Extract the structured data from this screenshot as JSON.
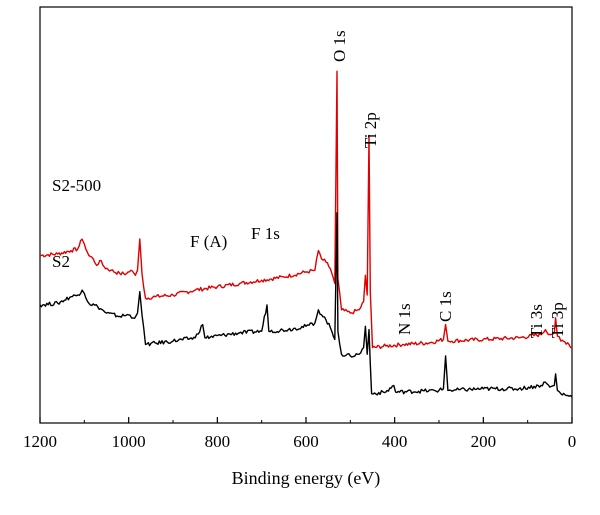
{
  "chart_data": {
    "type": "line",
    "title": "",
    "xlabel": "Binding energy (eV)",
    "ylabel": "",
    "xlim": [
      1200,
      0
    ],
    "x_reversed": true,
    "x_ticks": [
      1200,
      1000,
      800,
      600,
      400,
      200,
      0
    ],
    "grid": false,
    "legend": "none",
    "y_ticks_shown": false,
    "series": [
      {
        "name": "S2-500",
        "color": "#e00000",
        "values": [
          [
            1200,
            43.0
          ],
          [
            1160,
            43.5
          ],
          [
            1130,
            44.5
          ],
          [
            1115,
            45.0
          ],
          [
            1105,
            48.0
          ],
          [
            1100,
            46.5
          ],
          [
            1090,
            43.0
          ],
          [
            1080,
            42.0
          ],
          [
            1072,
            40.0
          ],
          [
            1065,
            41.5
          ],
          [
            1055,
            39.5
          ],
          [
            1040,
            38.5
          ],
          [
            1020,
            37.5
          ],
          [
            1005,
            37.5
          ],
          [
            995,
            38.5
          ],
          [
            985,
            37.0
          ],
          [
            980,
            38.5
          ],
          [
            975,
            48.0
          ],
          [
            970,
            37.5
          ],
          [
            962,
            30.0
          ],
          [
            940,
            30.5
          ],
          [
            900,
            31.0
          ],
          [
            850,
            32.5
          ],
          [
            800,
            33.5
          ],
          [
            750,
            34.5
          ],
          [
            700,
            35.5
          ],
          [
            650,
            36.5
          ],
          [
            600,
            38.0
          ],
          [
            580,
            38.5
          ],
          [
            572,
            44.5
          ],
          [
            565,
            42.0
          ],
          [
            555,
            41.0
          ],
          [
            545,
            39.0
          ],
          [
            535,
            34.5
          ],
          [
            530,
            99.0
          ],
          [
            528,
            36.0
          ],
          [
            520,
            26.5
          ],
          [
            500,
            25.5
          ],
          [
            480,
            26.5
          ],
          [
            470,
            29.0
          ],
          [
            466,
            37.0
          ],
          [
            462,
            31.0
          ],
          [
            458,
            79.5
          ],
          [
            455,
            32.0
          ],
          [
            450,
            15.0
          ],
          [
            420,
            15.5
          ],
          [
            380,
            16.0
          ],
          [
            320,
            16.5
          ],
          [
            290,
            17.5
          ],
          [
            285,
            22.0
          ],
          [
            280,
            17.0
          ],
          [
            200,
            17.5
          ],
          [
            120,
            18.0
          ],
          [
            70,
            19.0
          ],
          [
            60,
            20.5
          ],
          [
            50,
            19.0
          ],
          [
            40,
            19.5
          ],
          [
            37,
            24.0
          ],
          [
            33,
            18.5
          ],
          [
            25,
            17.0
          ],
          [
            10,
            16.5
          ],
          [
            0,
            15.0
          ]
        ]
      },
      {
        "name": "S2",
        "color": "#000000",
        "values": [
          [
            1200,
            28.0
          ],
          [
            1160,
            28.5
          ],
          [
            1130,
            30.5
          ],
          [
            1115,
            31.0
          ],
          [
            1105,
            32.5
          ],
          [
            1100,
            31.5
          ],
          [
            1090,
            28.5
          ],
          [
            1070,
            27.5
          ],
          [
            1050,
            25.5
          ],
          [
            1020,
            24.5
          ],
          [
            1000,
            25.0
          ],
          [
            990,
            24.0
          ],
          [
            980,
            25.5
          ],
          [
            975,
            32.0
          ],
          [
            970,
            25.0
          ],
          [
            962,
            16.0
          ],
          [
            900,
            17.0
          ],
          [
            850,
            18.0
          ],
          [
            833,
            22.0
          ],
          [
            828,
            18.0
          ],
          [
            750,
            19.5
          ],
          [
            700,
            20.0
          ],
          [
            688,
            28.0
          ],
          [
            684,
            20.0
          ],
          [
            640,
            20.5
          ],
          [
            600,
            21.5
          ],
          [
            580,
            22.5
          ],
          [
            572,
            26.5
          ],
          [
            565,
            25.0
          ],
          [
            555,
            23.5
          ],
          [
            545,
            21.0
          ],
          [
            535,
            17.5
          ],
          [
            530,
            56.0
          ],
          [
            528,
            20.0
          ],
          [
            520,
            13.0
          ],
          [
            500,
            12.5
          ],
          [
            480,
            13.0
          ],
          [
            470,
            15.0
          ],
          [
            466,
            21.5
          ],
          [
            462,
            13.0
          ],
          [
            458,
            20.5
          ],
          [
            455,
            10.0
          ],
          [
            452,
            1.0
          ],
          [
            420,
            1.5
          ],
          [
            402,
            3.5
          ],
          [
            398,
            1.5
          ],
          [
            300,
            2.0
          ],
          [
            290,
            2.5
          ],
          [
            285,
            12.5
          ],
          [
            280,
            2.0
          ],
          [
            200,
            2.5
          ],
          [
            120,
            2.5
          ],
          [
            70,
            3.5
          ],
          [
            60,
            4.5
          ],
          [
            50,
            3.0
          ],
          [
            40,
            3.5
          ],
          [
            37,
            7.0
          ],
          [
            33,
            2.0
          ],
          [
            25,
            1.0
          ],
          [
            10,
            0.5
          ],
          [
            0,
            0.0
          ]
        ]
      }
    ],
    "series_labels": [
      "S2-500",
      "S2"
    ],
    "peak_labels": [
      {
        "text": "O 1s",
        "x": 530,
        "rotated": true
      },
      {
        "text": "Ti 2p",
        "x": 458,
        "rotated": true
      },
      {
        "text": "F (A)",
        "x": 795,
        "rotated": false
      },
      {
        "text": "F 1s",
        "x": 688,
        "rotated": false
      },
      {
        "text": "N 1s",
        "x": 400,
        "rotated": true
      },
      {
        "text": "C 1s",
        "x": 285,
        "rotated": true
      },
      {
        "text": "Ti 3s",
        "x": 60,
        "rotated": true
      },
      {
        "text": "Ti 3p",
        "x": 37,
        "rotated": true
      }
    ]
  }
}
